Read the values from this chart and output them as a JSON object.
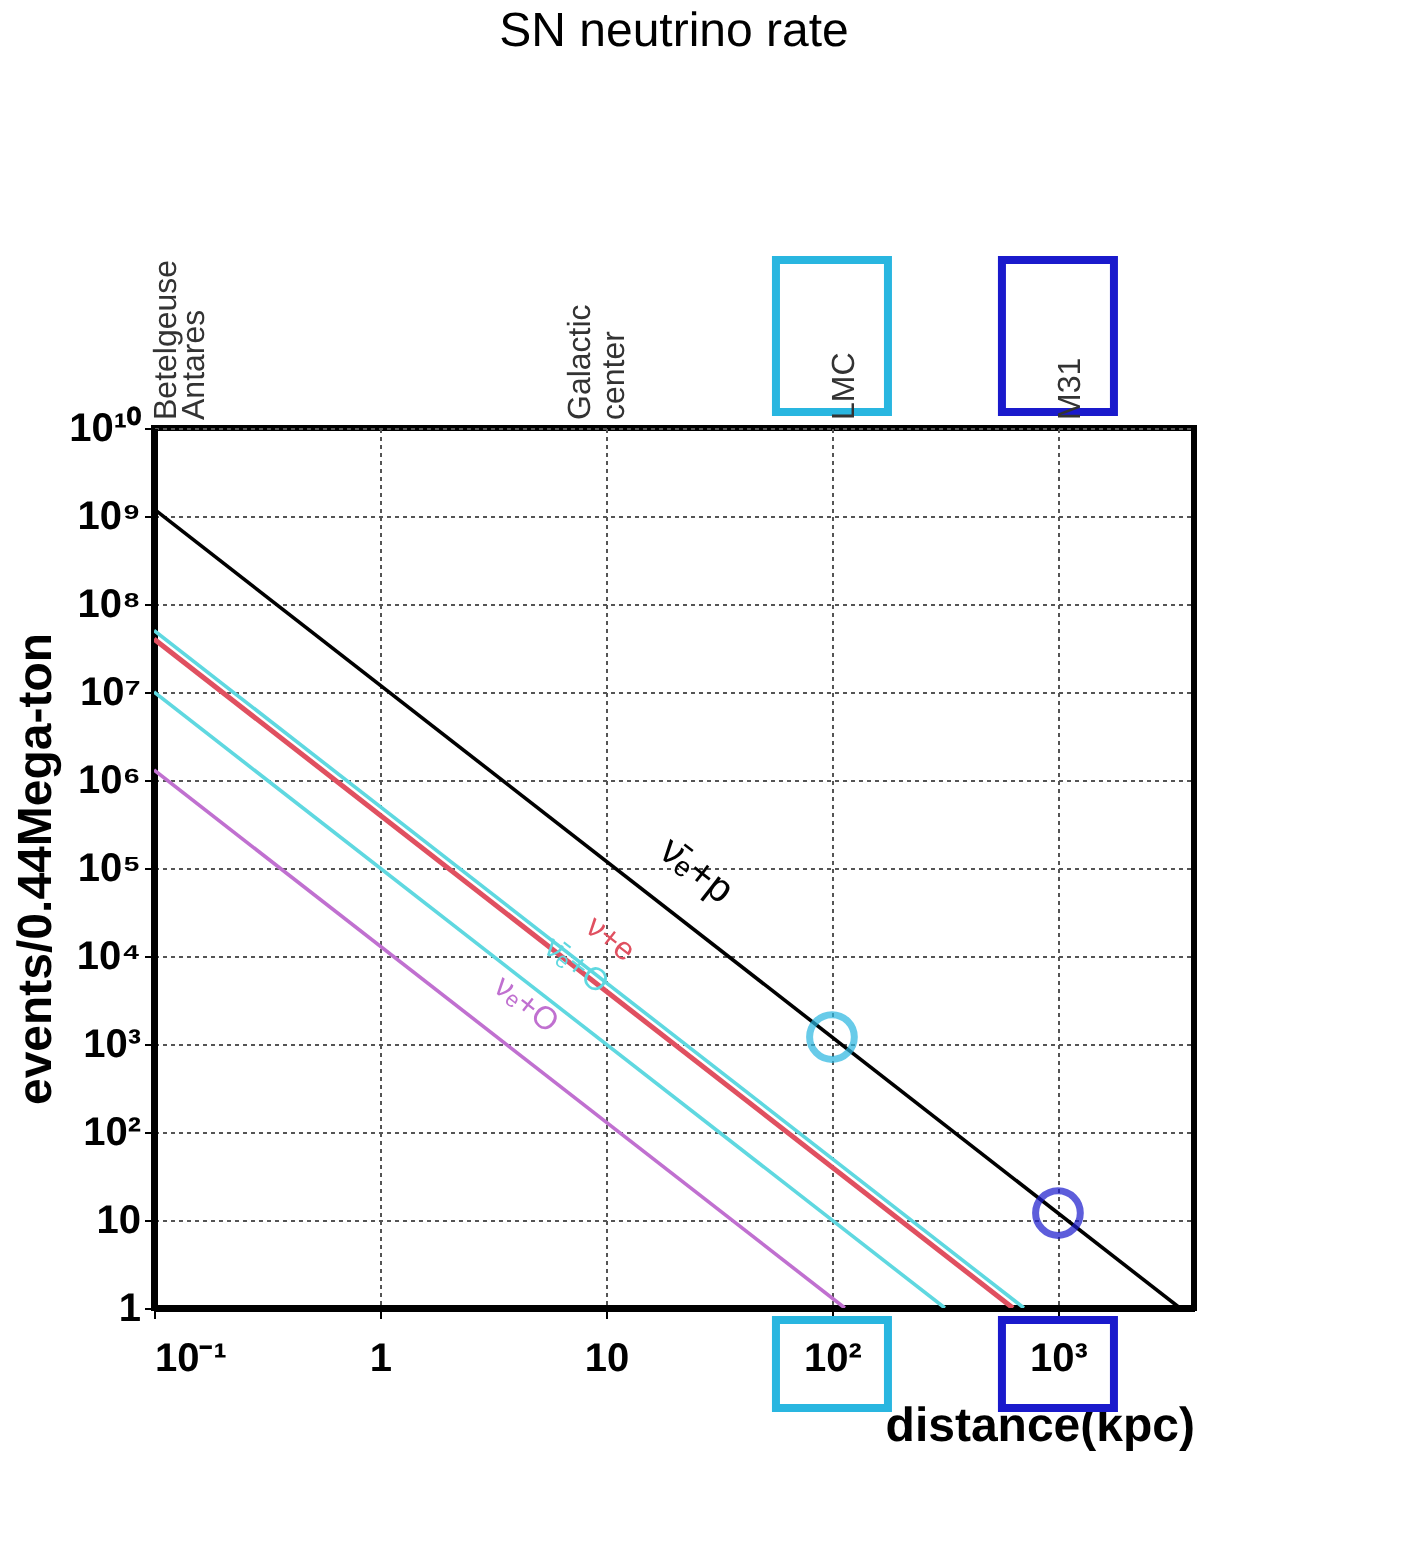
{
  "chart_data": {
    "type": "line",
    "title": "SN neutrino rate",
    "xlabel": "distance(kpc)",
    "ylabel": "events/0.44Mega-ton",
    "log": "xy",
    "grid": true,
    "line_style": "solid",
    "xlim": [
      0.1,
      4000
    ],
    "ylim": [
      1,
      10000000000
    ],
    "xticks": [
      {
        "value": 0.1,
        "label": "10⁻¹"
      },
      1,
      10,
      {
        "value": 100,
        "label": "10²"
      },
      {
        "value": 1000,
        "label": "10³"
      }
    ],
    "yticks": [
      1,
      10,
      {
        "value": 100,
        "label": "10²"
      },
      {
        "value": 1000,
        "label": "10³"
      },
      {
        "value": 10000,
        "label": "10⁴"
      },
      {
        "value": 100000,
        "label": "10⁵"
      },
      {
        "value": 1000000,
        "label": "10⁶"
      },
      {
        "value": 10000000,
        "label": "10⁷"
      },
      {
        "value": 100000000,
        "label": "10⁸"
      },
      {
        "value": 1000000000,
        "label": "10⁹"
      },
      {
        "value": 10000000000,
        "label": "10¹⁰"
      }
    ],
    "series": [
      {
        "name": "ν̄ₑ+p",
        "color": "#000000",
        "x": [
          0.1,
          3464
        ],
        "values": [
          1200000000,
          1
        ]
      },
      {
        "color": "#5fd8e0",
        "x": [
          0.1,
          707
        ],
        "values": [
          50000000,
          1
        ]
      },
      {
        "name": "ν+e",
        "color": "#e05060",
        "x": [
          0.1,
          632
        ],
        "values": [
          40000000,
          1
        ]
      },
      {
        "name": "ν̄ₑ+O",
        "color": "#5fd8e0",
        "x": [
          0.1,
          316
        ],
        "values": [
          10000000,
          1
        ]
      },
      {
        "name": "νₑ+O",
        "color": "#c070d0",
        "x": [
          0.1,
          114
        ],
        "values": [
          1300000,
          1
        ]
      },
      {
        "type": "scatter",
        "marker": "circle",
        "color": "#29b6e0",
        "x": [
          100
        ],
        "values": [
          1200
        ]
      },
      {
        "type": "scatter",
        "marker": "circle",
        "color": "#1a1acc",
        "x": [
          1000
        ],
        "values": [
          12
        ]
      }
    ],
    "annotations": [
      "Betelgeuse",
      "Antares",
      "Galactic",
      "center",
      "LMC",
      "M31"
    ]
  }
}
